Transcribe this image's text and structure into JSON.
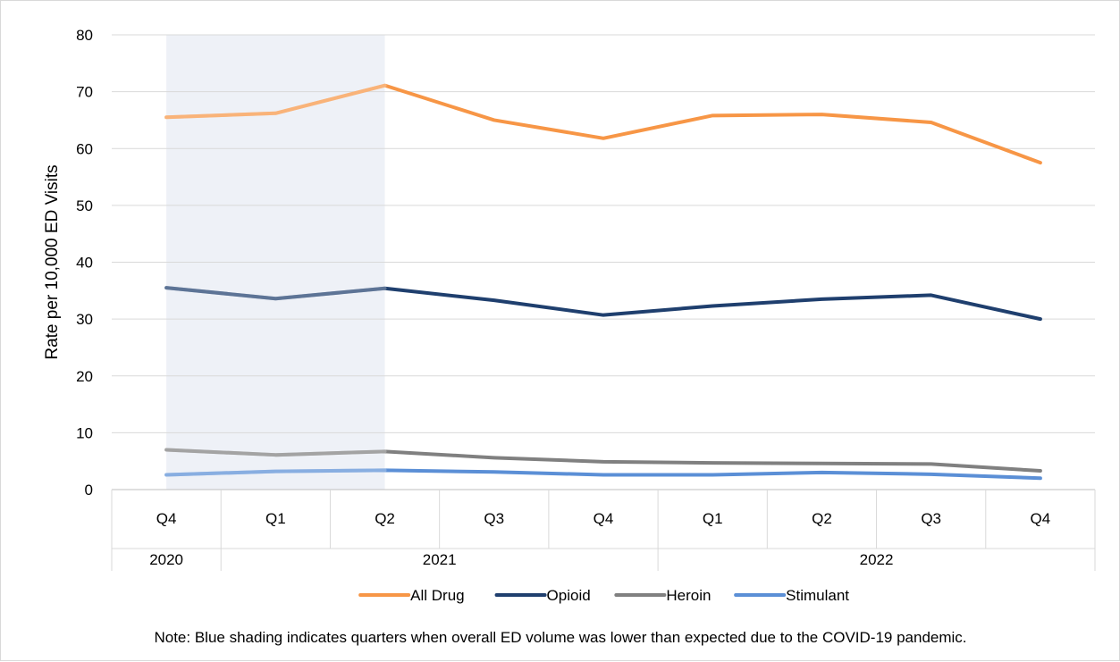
{
  "chart_data": {
    "type": "line",
    "title": "",
    "xlabel": "",
    "ylabel": "Rate per 10,000 ED Visits",
    "ylim": [
      0,
      80
    ],
    "yticks": [
      0,
      10,
      20,
      30,
      40,
      50,
      60,
      70,
      80
    ],
    "grid": true,
    "legend_position": "bottom",
    "categories": [
      "Q4",
      "Q1",
      "Q2",
      "Q3",
      "Q4",
      "Q1",
      "Q2",
      "Q3",
      "Q4"
    ],
    "years": [
      {
        "label": "2020",
        "start": 0,
        "end": 0
      },
      {
        "label": "2021",
        "start": 1,
        "end": 4
      },
      {
        "label": "2022",
        "start": 5,
        "end": 8
      }
    ],
    "shaded_range": {
      "start": 0,
      "end": 2,
      "color": "#eef1f7"
    },
    "series": [
      {
        "name": "All Drug",
        "color": "#f79646",
        "values": [
          65.5,
          66.2,
          71.1,
          65.0,
          61.8,
          65.8,
          66.0,
          64.6,
          57.5
        ]
      },
      {
        "name": "Opioid",
        "color": "#1f3f6e",
        "values": [
          35.5,
          33.6,
          35.4,
          33.3,
          30.7,
          32.3,
          33.5,
          34.2,
          30.0
        ]
      },
      {
        "name": "Heroin",
        "color": "#808080",
        "values": [
          7.0,
          6.1,
          6.7,
          5.6,
          4.9,
          4.7,
          4.6,
          4.5,
          3.3
        ]
      },
      {
        "name": "Stimulant",
        "color": "#5b8fd6",
        "values": [
          2.6,
          3.2,
          3.4,
          3.1,
          2.6,
          2.6,
          3.0,
          2.7,
          2.0
        ]
      }
    ],
    "note": "Note: Blue shading indicates quarters when overall ED volume was lower than expected due to the COVID-19 pandemic."
  }
}
